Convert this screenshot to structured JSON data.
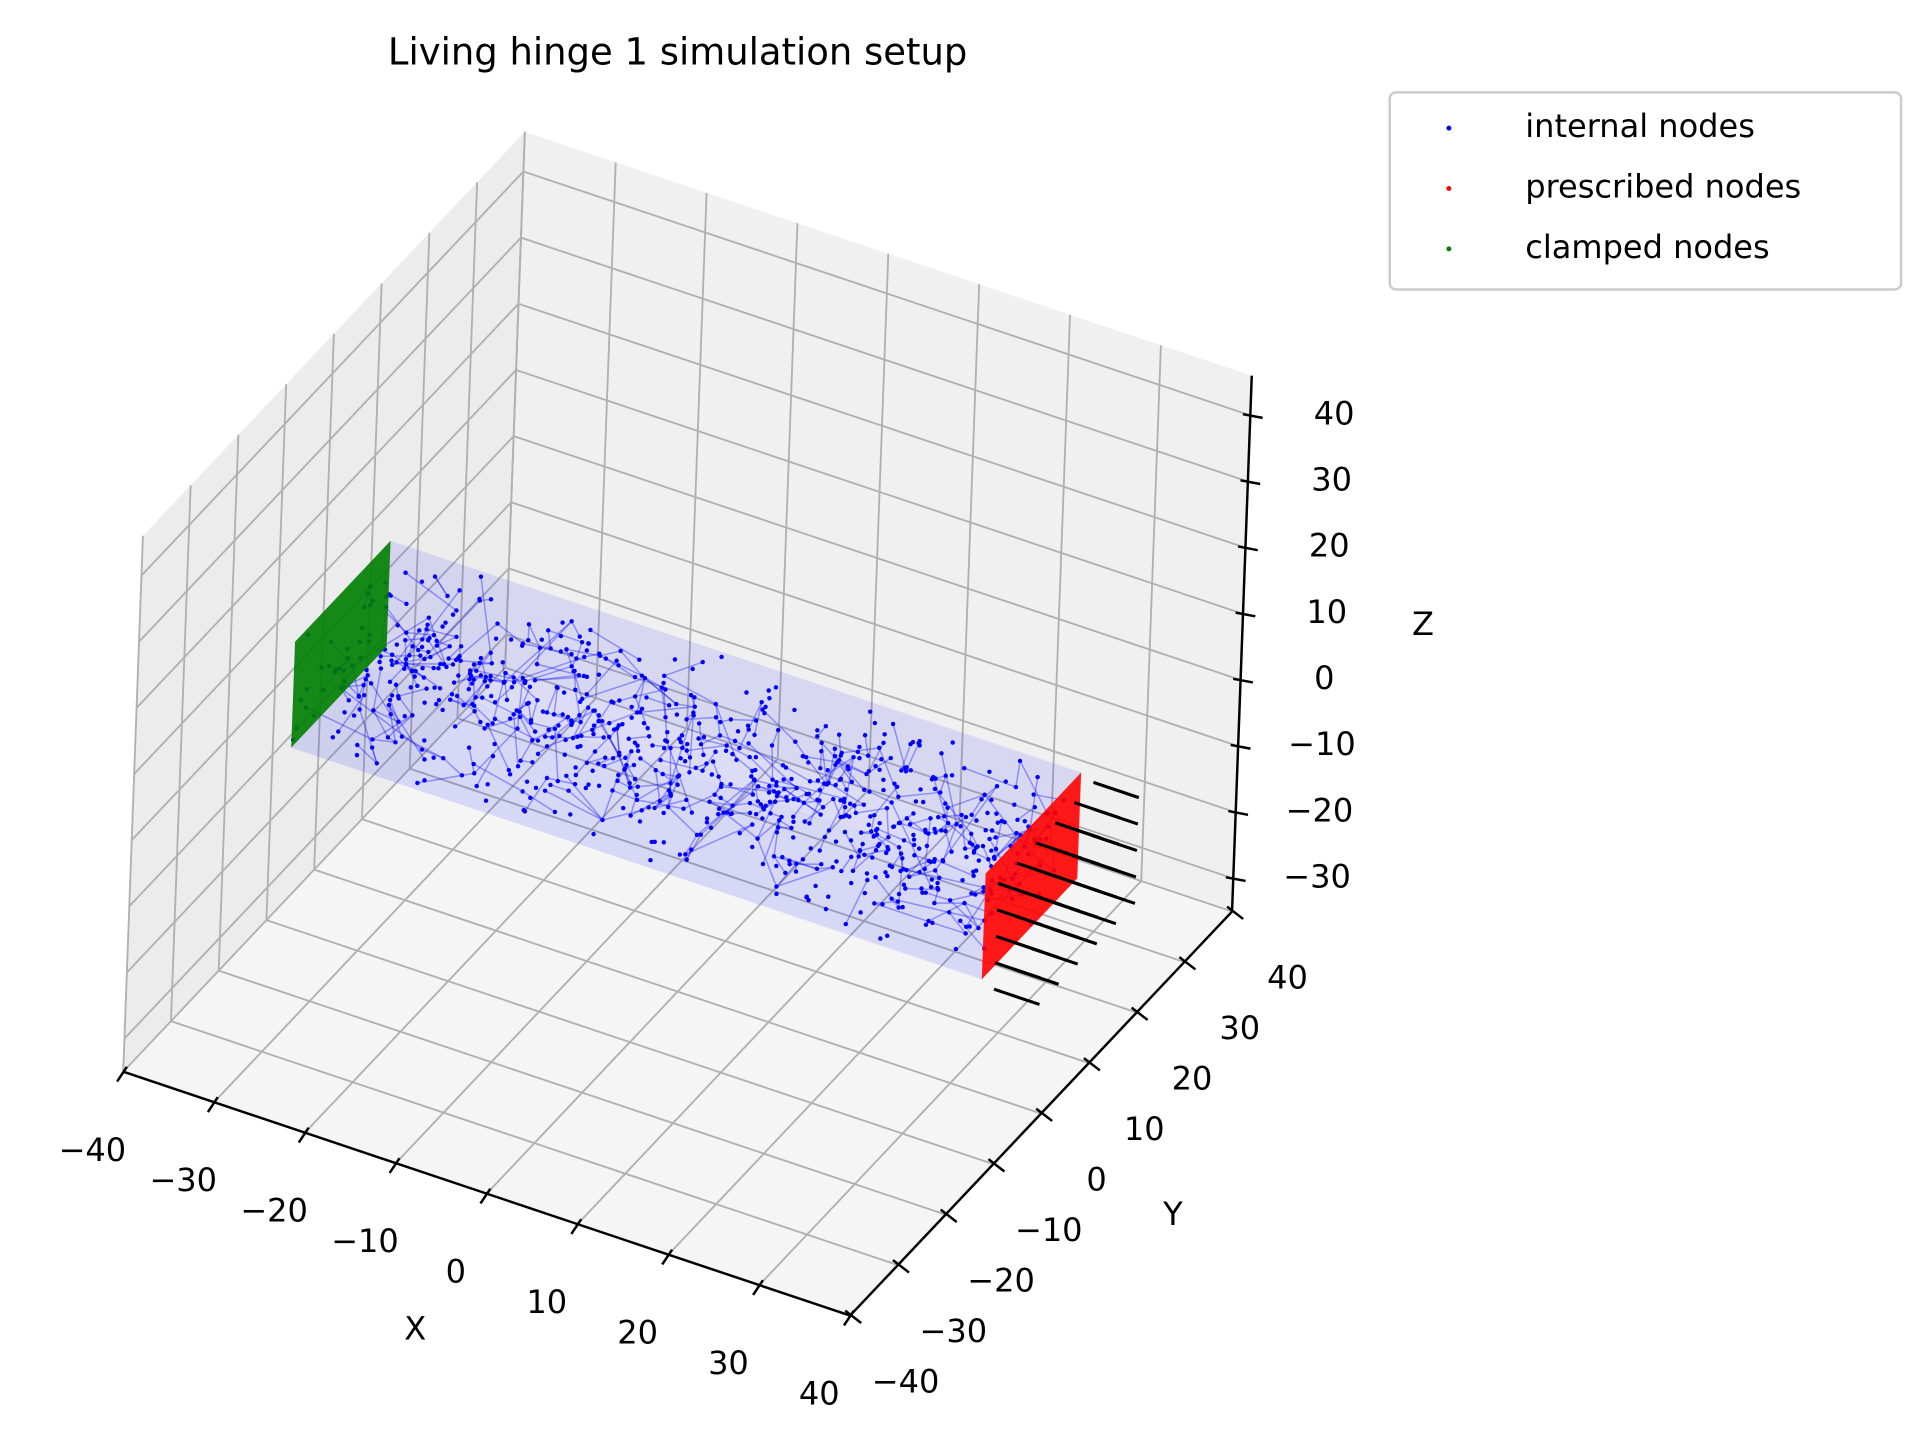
{
  "chart_data": {
    "type": "scatter3d",
    "title": "Living hinge 1 simulation setup",
    "x_label": "X",
    "y_label": "Y",
    "z_label": "Z",
    "xlim": [
      -40,
      40
    ],
    "ylim": [
      -40,
      40
    ],
    "zlim": [
      -35,
      46
    ],
    "xticks": [
      {
        "value": -40,
        "label": "−40"
      },
      {
        "value": -30,
        "label": "−30"
      },
      {
        "value": -20,
        "label": "−20"
      },
      {
        "value": -10,
        "label": "−10"
      },
      0,
      10,
      20,
      30,
      40
    ],
    "yticks": [
      {
        "value": -40,
        "label": "−40"
      },
      {
        "value": -30,
        "label": "−30"
      },
      {
        "value": -20,
        "label": "−20"
      },
      {
        "value": -10,
        "label": "−10"
      },
      0,
      10,
      20,
      30,
      40
    ],
    "zticks": [
      {
        "value": -30,
        "label": "−30"
      },
      {
        "value": -20,
        "label": "−20"
      },
      {
        "value": -10,
        "label": "−10"
      },
      0,
      10,
      20,
      30,
      40
    ],
    "grid": true,
    "legend_position": "outside-upper-right",
    "series": [
      {
        "name": "internal nodes",
        "color": "#0000ff"
      },
      {
        "name": "prescribed nodes",
        "color": "#ff0000"
      },
      {
        "name": "clamped nodes",
        "color": "#008000"
      }
    ]
  }
}
